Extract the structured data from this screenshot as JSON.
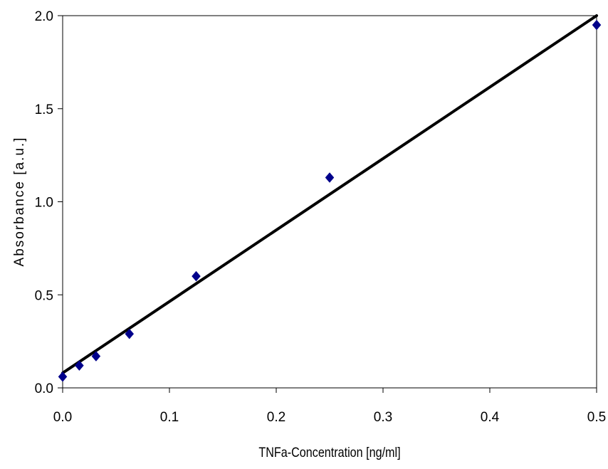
{
  "chart_data": {
    "type": "scatter",
    "title": "",
    "xlabel": "TNFa-Concentration [ng/ml]",
    "ylabel": "Absorbance [a.u.]",
    "xlim": [
      0,
      0.5
    ],
    "ylim": [
      0,
      2
    ],
    "xticks": [
      "0.0",
      "0.1",
      "0.2",
      "0.3",
      "0.4",
      "0.5"
    ],
    "yticks": [
      "0.0",
      "0.5",
      "1.0",
      "1.5",
      "2.0"
    ],
    "xtick_values": [
      0,
      0.1,
      0.2,
      0.3,
      0.4,
      0.5
    ],
    "ytick_values": [
      0,
      0.5,
      1.0,
      1.5,
      2.0
    ],
    "grid": false,
    "legend": "none",
    "series": [
      {
        "marker": "diamond",
        "color": "#00008B",
        "x": [
          0,
          0.0156,
          0.03125,
          0.0625,
          0.125,
          0.25,
          0.5
        ],
        "y": [
          0.06,
          0.12,
          0.17,
          0.29,
          0.6,
          1.13,
          1.95
        ]
      }
    ],
    "trendline": {
      "type": "linear",
      "color": "#000000",
      "x": [
        0,
        0.5
      ],
      "y": [
        0.08,
        2.0
      ]
    }
  }
}
